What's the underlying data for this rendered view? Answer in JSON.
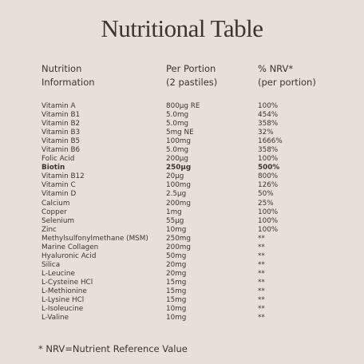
{
  "title": "Nutritional Table",
  "table": {
    "header": [
      [
        "Nutrition",
        "Information"
      ],
      [
        "Per Portion",
        "(2 pastiles)"
      ],
      [
        "% NRV*",
        "(per portion)"
      ]
    ],
    "rows": [
      [
        "Vitamin A",
        "800µg RE",
        "100%"
      ],
      [
        "Vitamin B1",
        "5.0mg",
        "454%"
      ],
      [
        "Vitamin B2",
        "5.0mg",
        "358%"
      ],
      [
        "Vitamin B3",
        "5mg NE",
        "32%"
      ],
      [
        "Vitamin B5",
        "100mg",
        "1666%"
      ],
      [
        "Vitamin B6",
        "5.0mg",
        "358%"
      ],
      [
        "Folic Acid",
        "200µg",
        "100%"
      ],
      [
        "Biotin",
        "250µg",
        "500%"
      ],
      [
        "Vitamin B12",
        "20µg",
        "800%"
      ],
      [
        "Vitamin C",
        "100mg",
        "126%"
      ],
      [
        "Vitamin D",
        "2.5µg",
        "50%"
      ],
      [
        "Calcium",
        "200mg",
        "25%"
      ],
      [
        "Copper",
        "1mg",
        "100%"
      ],
      [
        "Selenium",
        "55µg",
        "100%"
      ],
      [
        "Zinc",
        "10mg",
        "100%"
      ],
      [
        "Methylsulfonylmethane (MSM)",
        "250mg",
        "**"
      ],
      [
        "Marine Collagen",
        "200mg",
        "**"
      ],
      [
        "Hyaluronic Acid",
        "50mg",
        "**"
      ],
      [
        "Silica",
        "20mg",
        "**"
      ],
      [
        "L-Leucine",
        "20mg",
        "**"
      ],
      [
        "L-Cysteine HCl",
        "15mg",
        "**"
      ],
      [
        "L-Methionine",
        "15mg",
        "**"
      ],
      [
        "L-Lysine HCl",
        "15mg",
        "**"
      ],
      [
        "L-Isoleucine",
        "10mg",
        "**"
      ],
      [
        "L-Valine",
        "10mg",
        "**"
      ]
    ]
  },
  "footnote": "* NRV=Nutrient Reference Value"
}
